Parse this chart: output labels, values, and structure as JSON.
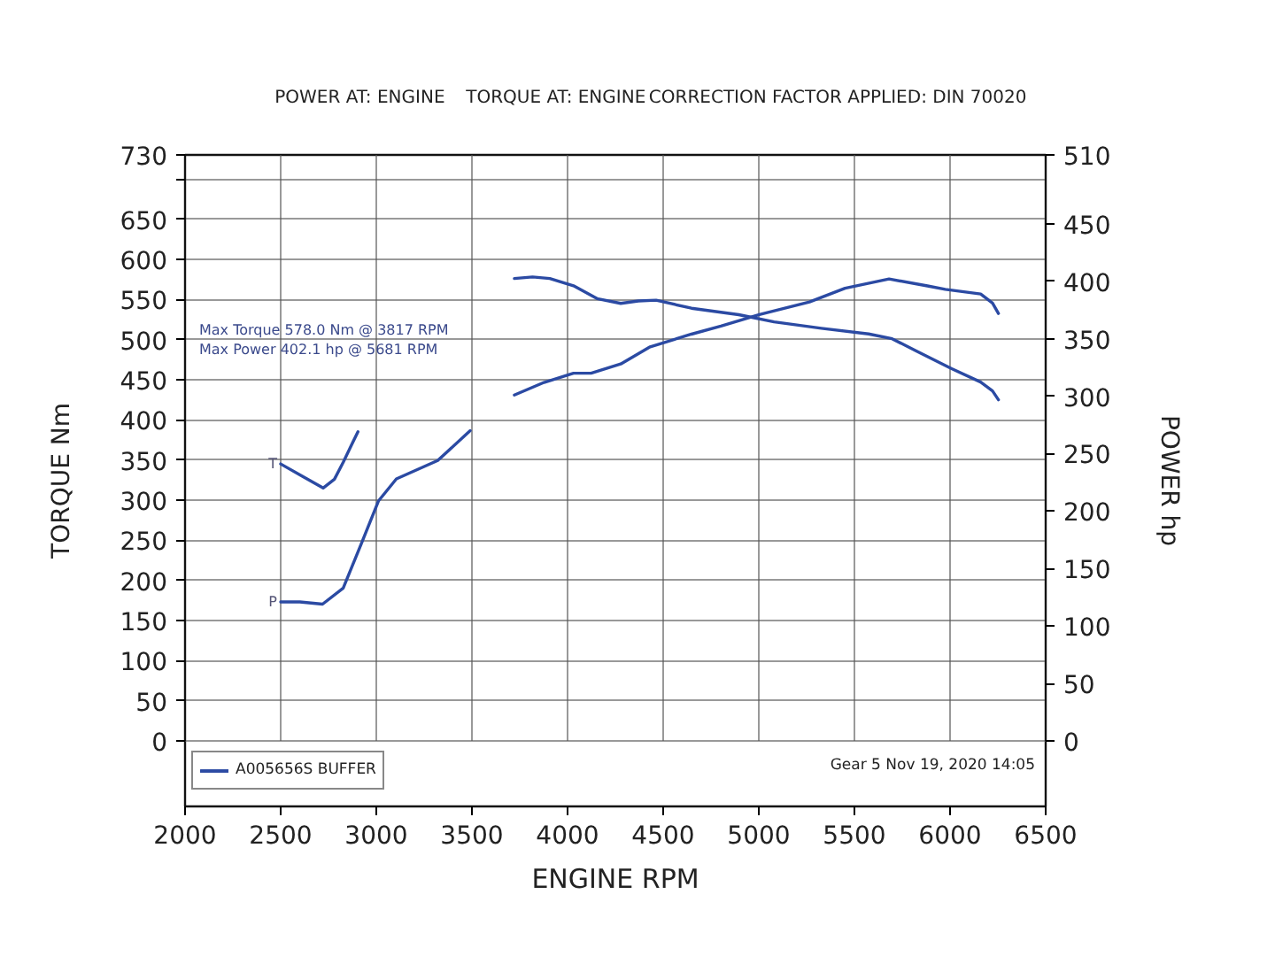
{
  "chart_data": {
    "type": "line",
    "xlabel": "ENGINE RPM",
    "ylabel": "TORQUE Nm",
    "y2label": "POWER hp",
    "annotations": [
      "POWER AT: ENGINE",
      "TORQUE AT: ENGINE",
      "CORRECTION FACTOR APPLIED: DIN 70020",
      "Max Torque 578.0 Nm @ 3817 RPM",
      "Max Power 402.1 hp @ 5681 RPM",
      "Gear 5 Nov 19, 2020 14:05"
    ],
    "legend_title": "A005656S BUFFER",
    "legend": "bottom",
    "grid": true,
    "xlim": [
      2000,
      6500
    ],
    "xticks": [
      2000,
      2500,
      3000,
      3500,
      4000,
      4500,
      5000,
      5500,
      6000,
      6500
    ],
    "ylim": [
      0,
      730
    ],
    "yticks": [
      0,
      50,
      100,
      150,
      200,
      250,
      300,
      350,
      400,
      450,
      500,
      550,
      600,
      650,
      {
        "value": 700,
        "label": null
      },
      730
    ],
    "y2lim": [
      0,
      510
    ],
    "y2ticks": [
      0,
      50,
      100,
      150,
      200,
      250,
      300,
      350,
      400,
      450,
      510
    ],
    "series": [
      {
        "name": "T",
        "color": "#2b4aa3",
        "x": [
          2500,
          2611,
          2722,
          2781,
          2827,
          2873,
          2904,
          3300,
          3722,
          3817,
          3907,
          4031,
          4154,
          4278,
          4370,
          4463,
          4648,
          4895,
          5080,
          5327,
          5574,
          5697,
          5821,
          6006,
          6160,
          6222,
          6253
        ],
        "values": [
          345,
          330,
          315,
          326,
          347,
          370,
          385,
          null,
          576,
          578,
          576,
          567,
          551,
          545,
          548,
          549,
          539,
          531,
          522,
          514,
          507,
          501,
          486,
          464,
          447,
          436,
          425
        ]
      },
      {
        "name": "P",
        "color": "#2b4aa3",
        "axis": "y2",
        "x": [
          2500,
          2600,
          2719,
          2827,
          2920,
          3012,
          3105,
          3321,
          3491,
          3600,
          3722,
          3877,
          4031,
          4123,
          4278,
          4432,
          4648,
          4802,
          5003,
          5265,
          5451,
          5681,
          5882,
          5975,
          6160,
          6222,
          6253
        ],
        "values": [
          121,
          121,
          119,
          133,
          171,
          209,
          228,
          244,
          270,
          null,
          301,
          312,
          320,
          320,
          328,
          343,
          354,
          361,
          371,
          382,
          394,
          402,
          396,
          393,
          389,
          381,
          372
        ]
      }
    ]
  }
}
